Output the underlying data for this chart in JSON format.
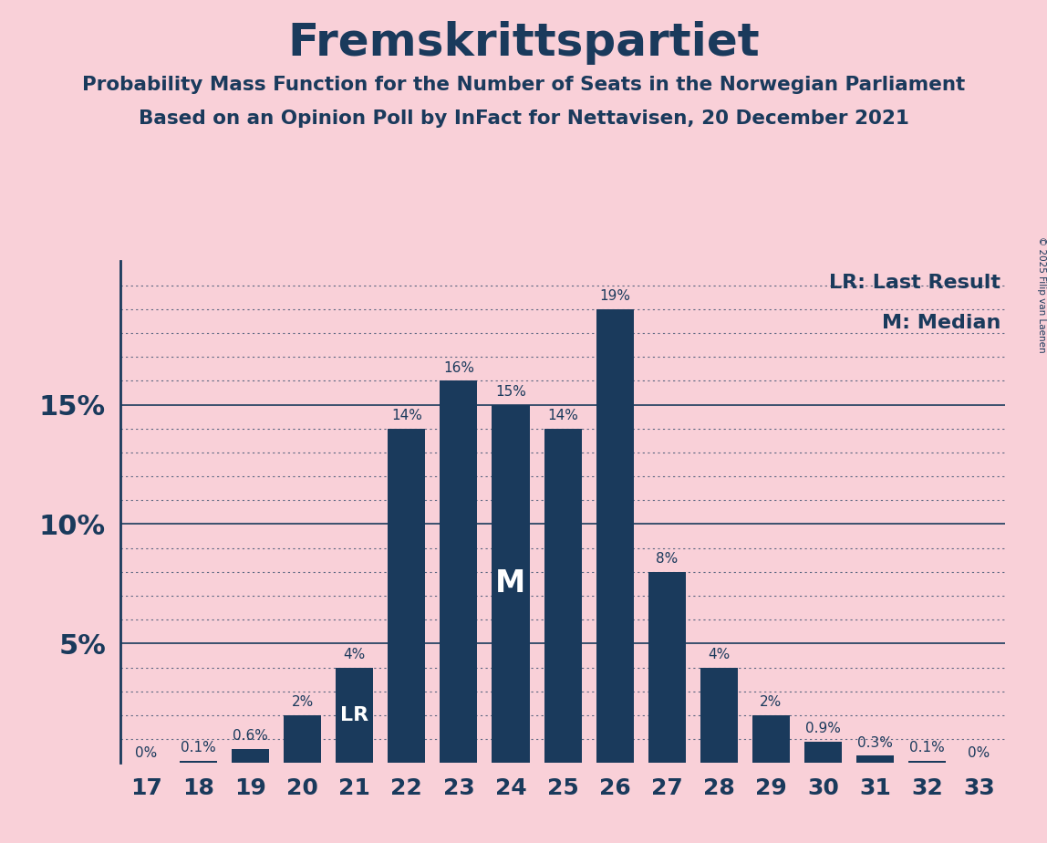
{
  "title": "Fremskrittspartiet",
  "subtitle1": "Probability Mass Function for the Number of Seats in the Norwegian Parliament",
  "subtitle2": "Based on an Opinion Poll by InFact for Nettavisen, 20 December 2021",
  "copyright": "© 2025 Filip van Laenen",
  "seats": [
    17,
    18,
    19,
    20,
    21,
    22,
    23,
    24,
    25,
    26,
    27,
    28,
    29,
    30,
    31,
    32,
    33
  ],
  "probabilities": [
    0.0,
    0.1,
    0.6,
    2.0,
    4.0,
    14.0,
    16.0,
    15.0,
    14.0,
    19.0,
    8.0,
    4.0,
    2.0,
    0.9,
    0.3,
    0.1,
    0.0
  ],
  "bar_color": "#1a3a5c",
  "background_color": "#f9d0d8",
  "text_color": "#1a3a5c",
  "median_seat": 24,
  "lr_seat": 21,
  "legend_lr": "LR: Last Result",
  "legend_m": "M: Median",
  "bar_labels": [
    "0%",
    "0.1%",
    "0.6%",
    "2%",
    "4%",
    "14%",
    "16%",
    "15%",
    "14%",
    "19%",
    "8%",
    "4%",
    "2%",
    "0.9%",
    "0.3%",
    "0.1%",
    "0%"
  ],
  "solid_gridlines": [
    5.0,
    10.0,
    15.0
  ],
  "dotted_gridlines": [
    1.0,
    2.0,
    3.0,
    4.0,
    6.0,
    7.0,
    8.0,
    9.0,
    11.0,
    12.0,
    13.0,
    14.0,
    16.0,
    17.0,
    18.0,
    19.0,
    20.0
  ]
}
